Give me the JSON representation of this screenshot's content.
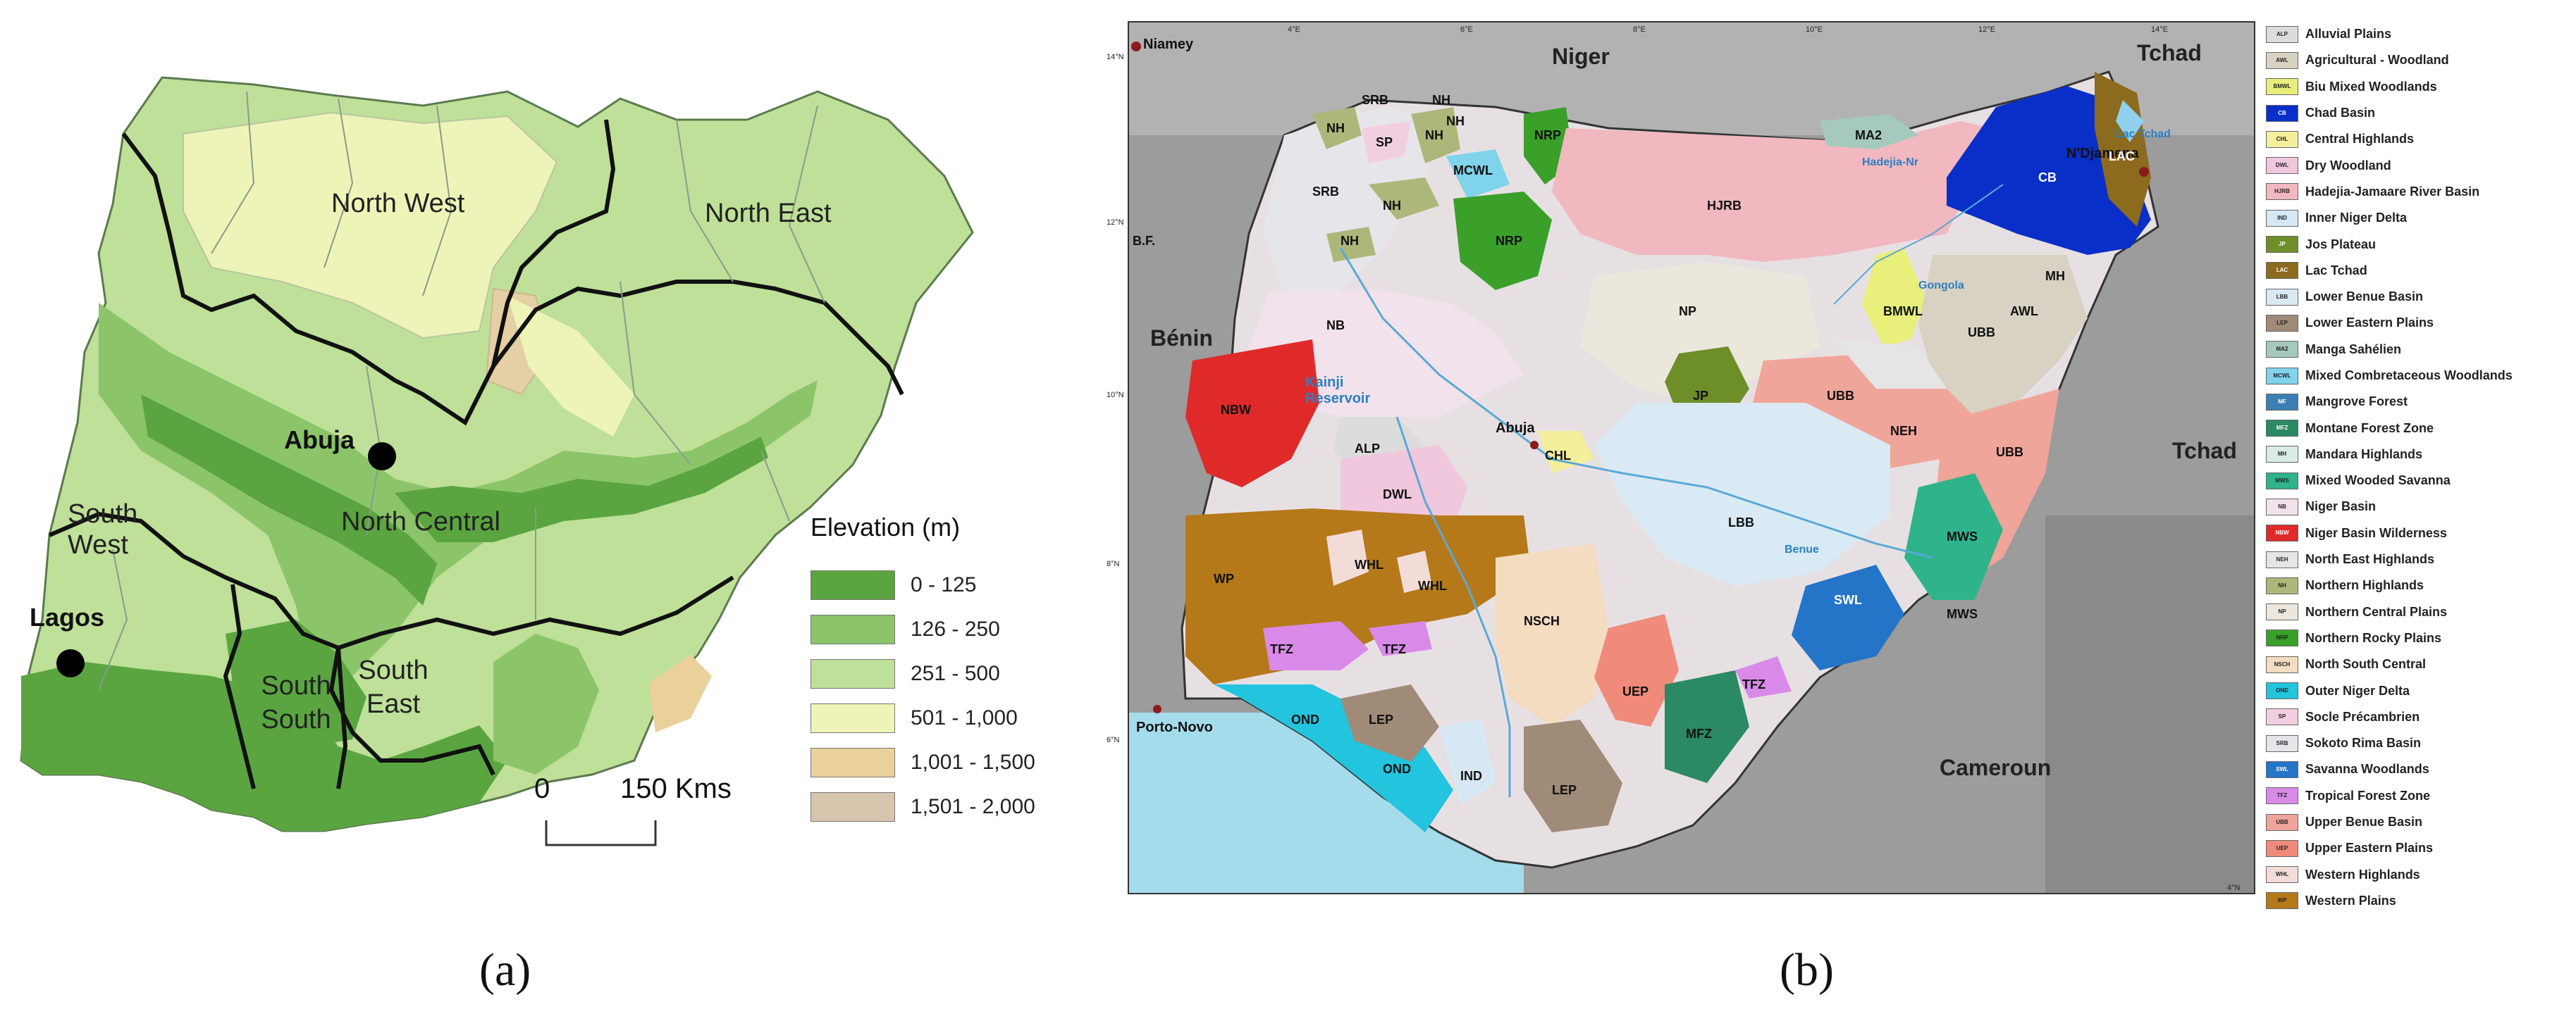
{
  "panel_a": {
    "caption": "(a)",
    "regions": [
      "North West",
      "North East",
      "North Central",
      "South West",
      "South South",
      "South East"
    ],
    "cities": [
      "Abuja",
      "Lagos"
    ],
    "legend": {
      "title": "Elevation (m)",
      "items": [
        {
          "label": "0 - 125",
          "color": "#5aa540"
        },
        {
          "label": "126 - 250",
          "color": "#8cc46a"
        },
        {
          "label": "251 - 500",
          "color": "#bfe098"
        },
        {
          "label": "501 - 1,000",
          "color": "#eef4b8"
        },
        {
          "label": "1,001 - 1,500",
          "color": "#ead09a"
        },
        {
          "label": "1,501 - 2,000",
          "color": "#d8c5ad"
        }
      ]
    },
    "scale": {
      "start": "0",
      "end": "150 Kms"
    }
  },
  "panel_b": {
    "caption": "(b)",
    "countries": [
      "Niger",
      "Tchad",
      "Bénin",
      "Tchad",
      "Cameroun"
    ],
    "cities": [
      "Niamey",
      "N'Djamena",
      "Abuja",
      "Porto-Novo"
    ],
    "water": [
      "Kainji Reservoir",
      "Lac Tchad",
      "Benue",
      "Gongola",
      "Hadejia-Nr"
    ],
    "lon_ticks": [
      "4°E",
      "6°E",
      "8°E",
      "10°E",
      "12°E",
      "14°E"
    ],
    "lat_ticks": [
      "14°N",
      "12°N",
      "10°N",
      "8°N",
      "6°N",
      "4°N"
    ],
    "other_labels": [
      "B.F."
    ],
    "zones": [
      "NH",
      "SRB",
      "SP",
      "NH",
      "NH",
      "NH",
      "SRB",
      "NH",
      "MCWL",
      "NH",
      "NRP",
      "NRP",
      "MA2",
      "HJRB",
      "CB",
      "LAC",
      "NB",
      "NP",
      "BMWL",
      "UBB",
      "AWL",
      "MH",
      "NBW",
      "JP",
      "UBB",
      "NEH",
      "UBB",
      "ALP",
      "CHL",
      "DWL",
      "LBB",
      "MWS",
      "MWS",
      "WP",
      "WHL",
      "WHL",
      "TFZ",
      "TFZ",
      "NSCH",
      "SWL",
      "TFZ",
      "OND",
      "LEP",
      "OND",
      "IND",
      "UEP",
      "MFZ",
      "LEP"
    ],
    "legend": [
      {
        "code": "ALP",
        "name": "Alluvial Plains",
        "color": "#dcdcdc"
      },
      {
        "code": "AWL",
        "name": "Agricultural - Woodland",
        "color": "#d8d2c2"
      },
      {
        "code": "BMWL",
        "name": "Biu Mixed Woodlands",
        "color": "#e8ef7a"
      },
      {
        "code": "CB",
        "name": "Chad Basin",
        "color": "#0a2fc8"
      },
      {
        "code": "CHL",
        "name": "Central Highlands",
        "color": "#f3ef9c"
      },
      {
        "code": "DWL",
        "name": "Dry Woodland",
        "color": "#f0c7dd"
      },
      {
        "code": "HJRB",
        "name": "Hadejia-Jamaare River Basin",
        "color": "#f1b8bf"
      },
      {
        "code": "IND",
        "name": "Inner Niger Delta",
        "color": "#d6e8f3"
      },
      {
        "code": "JP",
        "name": "Jos Plateau",
        "color": "#6e8e2a"
      },
      {
        "code": "LAC",
        "name": "Lac Tchad",
        "color": "#8c6a1e"
      },
      {
        "code": "LBB",
        "name": "Lower Benue Basin",
        "color": "#d9eaf5"
      },
      {
        "code": "LEP",
        "name": "Lower Eastern Plains",
        "color": "#a08a78"
      },
      {
        "code": "MA2",
        "name": "Manga Sahélien",
        "color": "#a5c9bd"
      },
      {
        "code": "MCWL",
        "name": "Mixed Combretaceous Woodlands",
        "color": "#7fd3ea"
      },
      {
        "code": "MF",
        "name": "Mangrove Forest",
        "color": "#3b7fb3"
      },
      {
        "code": "MFZ",
        "name": "Montane Forest Zone",
        "color": "#2b8a63"
      },
      {
        "code": "MH",
        "name": "Mandara Highlands",
        "color": "#d9ece8"
      },
      {
        "code": "MWS",
        "name": "Mixed Wooded Savanna",
        "color": "#2fb38a"
      },
      {
        "code": "NB",
        "name": "Niger Basin",
        "color": "#f2e2ec"
      },
      {
        "code": "NBW",
        "name": "Niger Basin Wilderness",
        "color": "#e02a2a"
      },
      {
        "code": "NEH",
        "name": "North East Highlands",
        "color": "#e5e5e5"
      },
      {
        "code": "NH",
        "name": "Northern Highlands",
        "color": "#aeb77a"
      },
      {
        "code": "NP",
        "name": "Northern Central Plains",
        "color": "#ece7dc"
      },
      {
        "code": "NRP",
        "name": "Northern Rocky Plains",
        "color": "#3aa02a"
      },
      {
        "code": "NSCH",
        "name": "North South Central",
        "color": "#f3dcc0"
      },
      {
        "code": "OND",
        "name": "Outer Niger Delta",
        "color": "#22c4de"
      },
      {
        "code": "SP",
        "name": "Socle Précambrien",
        "color": "#f2cfe0"
      },
      {
        "code": "SRB",
        "name": "Sokoto Rima Basin",
        "color": "#e6e6ea"
      },
      {
        "code": "SWL",
        "name": "Savanna Woodlands",
        "color": "#2474c8"
      },
      {
        "code": "TFZ",
        "name": "Tropical Forest Zone",
        "color": "#d98ae8"
      },
      {
        "code": "UBB",
        "name": "Upper Benue Basin",
        "color": "#f0a59a"
      },
      {
        "code": "UEP",
        "name": "Upper Eastern Plains",
        "color": "#f08a7a"
      },
      {
        "code": "WHL",
        "name": "Western Highlands",
        "color": "#f3dcd8"
      },
      {
        "code": "WP",
        "name": "Western Plains",
        "color": "#b5791a"
      }
    ]
  }
}
